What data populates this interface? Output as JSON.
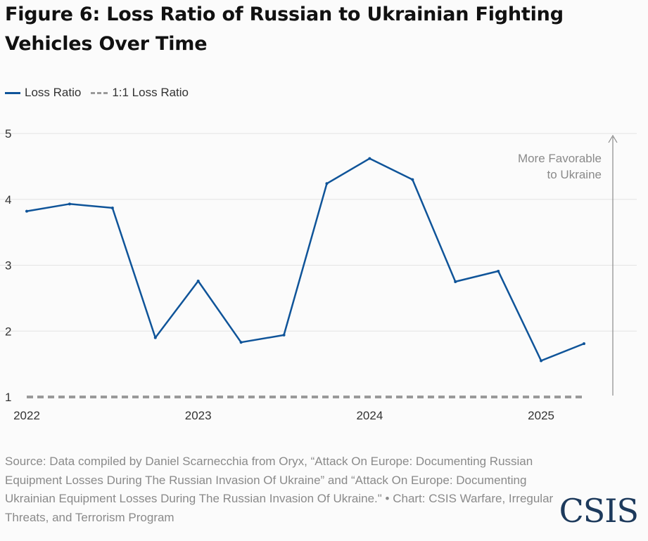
{
  "title": "Figure 6: Loss Ratio of Russian to Ukrainian Fighting Vehicles Over Time",
  "legend": {
    "series_label": "Loss Ratio",
    "reference_label": "1:1 Loss Ratio"
  },
  "annotation": {
    "line1": "More Favorable",
    "line2": "to Ukraine"
  },
  "source": "Source: Data compiled by Daniel Scarnecchia from Oryx, “Attack On Europe: Documenting Russian Equipment Losses During The Russian Invasion Of Ukraine” and “Attack On Europe: Documenting Ukrainian Equipment Losses During The Russian Invasion Of Ukraine.\" • Chart: CSIS Warfare, Irregular Threats, and Terrorism Program",
  "logo": "CSIS",
  "colors": {
    "series": "#0f5499",
    "reference": "#9a9a9a",
    "grid": "#e3e3e3",
    "axis_text": "#333333",
    "annotation": "#8a8a8a"
  },
  "chart_data": {
    "type": "line",
    "title": "Figure 6: Loss Ratio of Russian to Ukrainian Fighting Vehicles Over Time",
    "xlabel": "",
    "ylabel": "",
    "x": [
      2022.0,
      2022.25,
      2022.5,
      2022.75,
      2023.0,
      2023.25,
      2023.5,
      2023.75,
      2024.0,
      2024.25,
      2024.5,
      2024.75,
      2025.0,
      2025.25
    ],
    "xticks": [
      2022,
      2023,
      2024,
      2025
    ],
    "xtick_labels": [
      "2022",
      "2023",
      "2024",
      "2025"
    ],
    "yticks": [
      1,
      2,
      3,
      4,
      5
    ],
    "ytick_labels": [
      "1",
      "2",
      "3",
      "4",
      "5"
    ],
    "xlim": [
      2022.0,
      2025.25
    ],
    "ylim": [
      1,
      5
    ],
    "grid": true,
    "legend_position": "top-left",
    "series": [
      {
        "name": "Loss Ratio",
        "values": [
          3.82,
          3.93,
          3.87,
          1.9,
          2.76,
          1.83,
          1.94,
          4.24,
          4.62,
          4.3,
          2.75,
          2.91,
          1.55,
          1.81
        ]
      },
      {
        "name": "1:1 Loss Ratio",
        "values": [
          1,
          1,
          1,
          1,
          1,
          1,
          1,
          1,
          1,
          1,
          1,
          1,
          1,
          1
        ],
        "style": "dashed"
      }
    ]
  }
}
